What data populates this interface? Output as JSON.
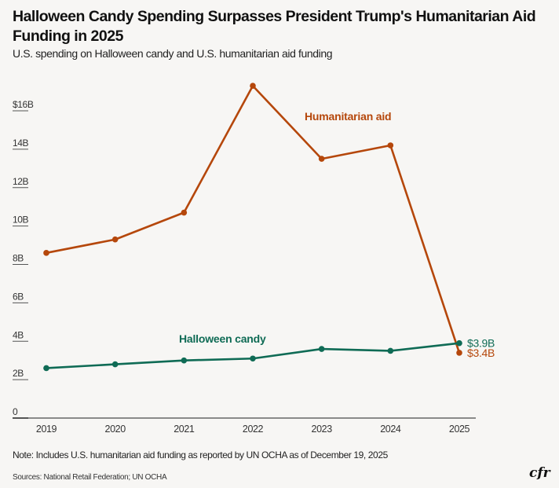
{
  "header": {
    "title": "Halloween Candy Spending Surpasses President Trump's Humanitarian Aid Funding in 2025",
    "subtitle": "U.S. spending on Halloween candy and U.S. humanitarian aid funding"
  },
  "footer": {
    "note": "Note: Includes U.S. humanitarian aid funding as reported by UN OCHA as of December 19, 2025",
    "sources": "Sources: National Retail Federation; UN OCHA",
    "logo": "cfr"
  },
  "chart_data": {
    "type": "line",
    "title": "Halloween Candy Spending Surpasses President Trump's Humanitarian Aid Funding in 2025",
    "subtitle": "U.S. spending on Halloween candy and U.S. humanitarian aid funding",
    "xlabel": "",
    "ylabel": "",
    "units": "billions USD",
    "x": [
      "2019",
      "2020",
      "2021",
      "2022",
      "2023",
      "2024",
      "2025"
    ],
    "ylim": [
      0,
      16
    ],
    "yticks": [
      0,
      2,
      4,
      6,
      8,
      10,
      12,
      14,
      16
    ],
    "ytick_labels": [
      "0",
      "2B",
      "4B",
      "6B",
      "8B",
      "10B",
      "12B",
      "14B",
      "$16B"
    ],
    "grid": false,
    "legend": "inline labels",
    "series": [
      {
        "name": "Humanitarian aid",
        "color": "#b5470b",
        "values": [
          8.6,
          9.3,
          10.7,
          17.3,
          13.5,
          14.2,
          3.4
        ],
        "end_label": "$3.4B"
      },
      {
        "name": "Halloween candy",
        "color": "#0f6b55",
        "values": [
          2.6,
          2.8,
          3.0,
          3.1,
          3.6,
          3.5,
          3.9
        ],
        "end_label": "$3.9B"
      }
    ]
  }
}
